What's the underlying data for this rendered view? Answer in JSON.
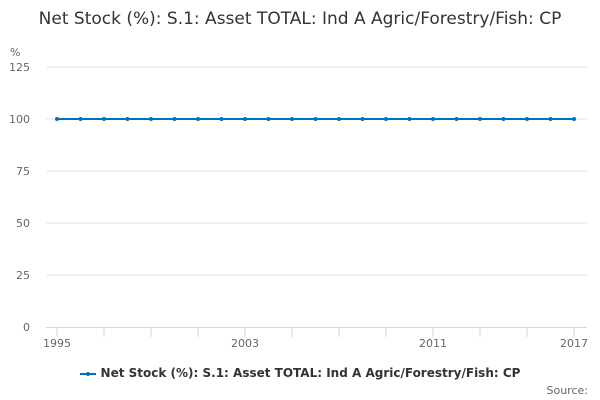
{
  "chart_data": {
    "type": "line",
    "title": "Net Stock (%): S.1: Asset TOTAL: Ind A Agric/Forestry/Fish: CP",
    "ylabel": "%",
    "xlabel": "",
    "ylim": [
      0,
      125
    ],
    "yticks": [
      0,
      25,
      50,
      75,
      100,
      125
    ],
    "xlim": [
      1995,
      2017
    ],
    "xtick_labels": [
      "1995",
      "2003",
      "2011",
      "2017"
    ],
    "grid": true,
    "legend_position": "bottom",
    "series": [
      {
        "name": "Net Stock (%): S.1: Asset TOTAL: Ind A Agric/Forestry/Fish: CP",
        "color": "#0072bc",
        "x": [
          1995,
          1996,
          1997,
          1998,
          1999,
          2000,
          2001,
          2002,
          2003,
          2004,
          2005,
          2006,
          2007,
          2008,
          2009,
          2010,
          2011,
          2012,
          2013,
          2014,
          2015,
          2016,
          2017
        ],
        "y": [
          100,
          100,
          100,
          100,
          100,
          100,
          100,
          100,
          100,
          100,
          100,
          100,
          100,
          100,
          100,
          100,
          100,
          100,
          100,
          100,
          100,
          100,
          100
        ]
      }
    ]
  },
  "source_label": "Source:"
}
